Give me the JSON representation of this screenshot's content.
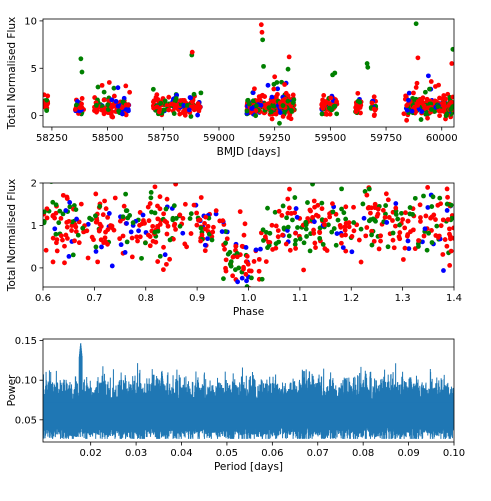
{
  "chart_data": [
    {
      "type": "scatter",
      "xlabel": "BMJD [days]",
      "ylabel": "Total Normalised Flux",
      "xlim": [
        58210,
        60055
      ],
      "ylim": [
        -1.2,
        10.2
      ],
      "xticks": [
        58250,
        58500,
        58750,
        59000,
        59250,
        59500,
        59750,
        60000
      ],
      "yticks": [
        0,
        5,
        10
      ],
      "colors": [
        "#ff0000",
        "#008000",
        "#0000ff"
      ],
      "seasons": [
        {
          "x0": 58210,
          "x1": 58235,
          "n": 24
        },
        {
          "x0": 58355,
          "x1": 58395,
          "n": 30
        },
        {
          "x0": 58440,
          "x1": 58600,
          "n": 110
        },
        {
          "x0": 58705,
          "x1": 58920,
          "n": 140
        },
        {
          "x0": 59125,
          "x1": 59340,
          "n": 260
        },
        {
          "x0": 59460,
          "x1": 59530,
          "n": 60
        },
        {
          "x0": 59610,
          "x1": 59640,
          "n": 22
        },
        {
          "x0": 59680,
          "x1": 59705,
          "n": 18
        },
        {
          "x0": 59835,
          "x1": 60055,
          "n": 200
        }
      ],
      "outliers": [
        {
          "x": 59190,
          "y": 9.6,
          "c": 0
        },
        {
          "x": 59193,
          "y": 8.8,
          "c": 0
        },
        {
          "x": 59196,
          "y": 8.0,
          "c": 1
        },
        {
          "x": 59200,
          "y": 5.2,
          "c": 1
        },
        {
          "x": 59315,
          "y": 6.2,
          "c": 0
        },
        {
          "x": 59310,
          "y": 4.9,
          "c": 1
        },
        {
          "x": 59885,
          "y": 9.7,
          "c": 1
        },
        {
          "x": 59893,
          "y": 6.1,
          "c": 0
        },
        {
          "x": 60050,
          "y": 7.0,
          "c": 1
        },
        {
          "x": 60045,
          "y": 5.5,
          "c": 0
        },
        {
          "x": 58880,
          "y": 6.7,
          "c": 0
        },
        {
          "x": 58878,
          "y": 6.4,
          "c": 1
        },
        {
          "x": 58380,
          "y": 6.0,
          "c": 1
        },
        {
          "x": 58385,
          "y": 4.6,
          "c": 1
        },
        {
          "x": 59665,
          "y": 5.5,
          "c": 1
        },
        {
          "x": 59668,
          "y": 5.1,
          "c": 1
        },
        {
          "x": 59520,
          "y": 4.5,
          "c": 1
        },
        {
          "x": 59510,
          "y": 4.3,
          "c": 1
        },
        {
          "x": 58215,
          "y": 2.2,
          "c": 0
        },
        {
          "x": 59940,
          "y": 4.2,
          "c": 2
        },
        {
          "x": 59953,
          "y": 3.6,
          "c": 0
        },
        {
          "x": 59945,
          "y": 2.8,
          "c": 1
        },
        {
          "x": 59250,
          "y": 4.1,
          "c": 0
        },
        {
          "x": 59260,
          "y": 3.5,
          "c": 1
        },
        {
          "x": 59220,
          "y": 3.2,
          "c": 2
        },
        {
          "x": 59830,
          "y": 0.2,
          "c": 0
        }
      ]
    },
    {
      "type": "scatter",
      "xlabel": "Phase",
      "ylabel": "Total Normalised Flux",
      "xlim": [
        0.6,
        1.4
      ],
      "ylim": [
        -0.45,
        2.0
      ],
      "xticks": [
        0.6,
        0.7,
        0.8,
        0.9,
        1.0,
        1.1,
        1.2,
        1.3,
        1.4
      ],
      "yticks": [
        0,
        1,
        2
      ],
      "colors": [
        "#ff0000",
        "#008000",
        "#0000ff"
      ],
      "n": 620,
      "dip_center": 0.995,
      "dip_depth": 0.95,
      "dip_width": 0.03
    },
    {
      "type": "line",
      "xlabel": "Period [days]",
      "ylabel": "Power",
      "xlim": [
        0.0095,
        0.1
      ],
      "ylim": [
        0.022,
        0.152
      ],
      "xticks": [
        0.02,
        0.03,
        0.04,
        0.05,
        0.06,
        0.07,
        0.08,
        0.09,
        0.1
      ],
      "yticks": [
        0.05,
        0.1,
        0.15
      ],
      "color": "#1f77b4",
      "peaks": [
        {
          "x": 0.0178,
          "y": 0.148
        },
        {
          "x": 0.0357,
          "y": 0.112
        },
        {
          "x": 0.0905,
          "y": 0.104
        }
      ]
    }
  ]
}
